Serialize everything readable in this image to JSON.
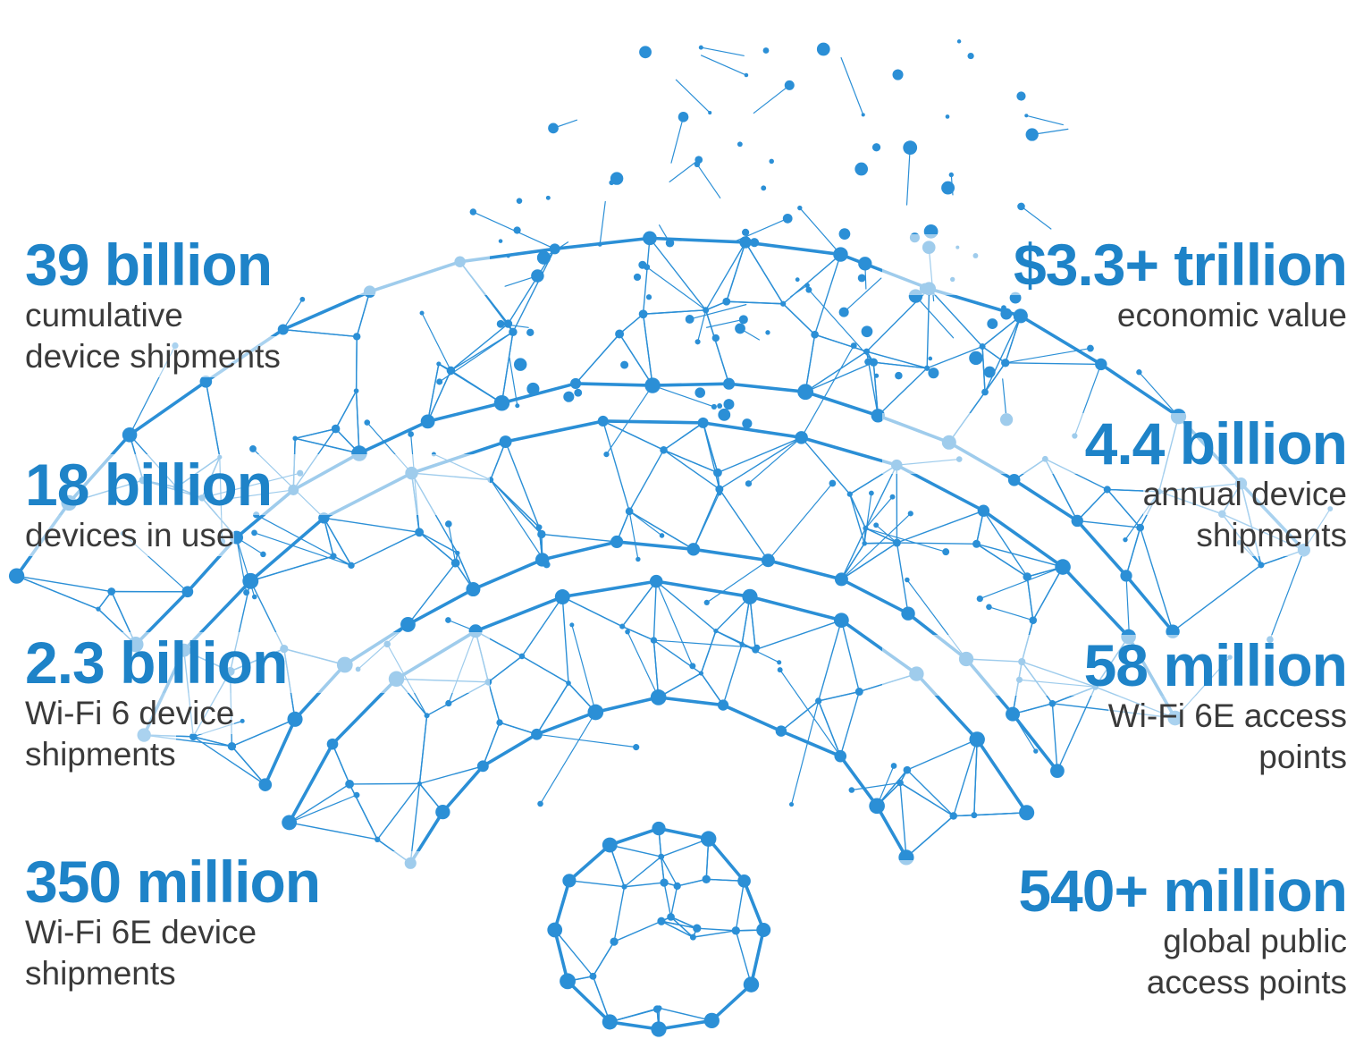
{
  "colors": {
    "accent": "#1e83c8",
    "network": "#2b8fd6",
    "label_text": "#3a3a3a"
  },
  "illustration": {
    "icon": "wifi-network-icon"
  },
  "stats_left": [
    {
      "value": "39 billion",
      "label_lines": [
        "cumulative",
        "device shipments"
      ]
    },
    {
      "value": "18 billion",
      "label_lines": [
        "devices in use"
      ]
    },
    {
      "value": "2.3 billion",
      "label_lines": [
        "Wi-Fi 6 device",
        "shipments"
      ]
    },
    {
      "value": "350 million",
      "label_lines": [
        "Wi-Fi 6E device",
        "shipments"
      ]
    }
  ],
  "stats_right": [
    {
      "value": "$3.3+ trillion",
      "label_lines": [
        "economic value"
      ]
    },
    {
      "value": "4.4 billion",
      "label_lines": [
        "annual device",
        "shipments"
      ]
    },
    {
      "value": "58 million",
      "label_lines": [
        "Wi-Fi 6E access",
        "points"
      ]
    },
    {
      "value": "540+ million",
      "label_lines": [
        "global public",
        "access points"
      ]
    }
  ]
}
